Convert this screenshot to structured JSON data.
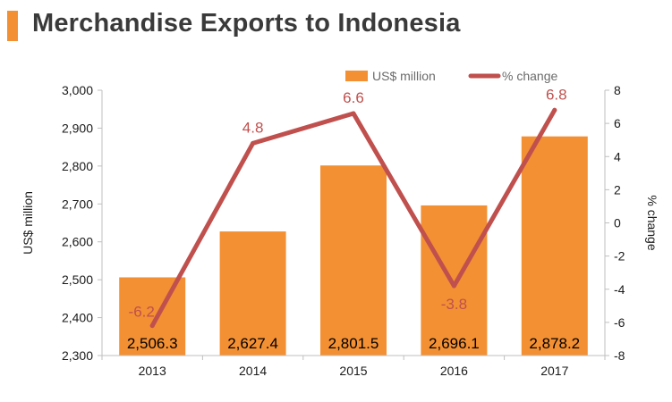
{
  "header": {
    "title": "Merchandise Exports to Indonesia"
  },
  "colors": {
    "bar": "#f39033",
    "line": "#c0504d",
    "accent": "#f39033"
  },
  "chart_data": {
    "type": "bar+line",
    "title": "Merchandise Exports to Indonesia",
    "categories": [
      "2013",
      "2014",
      "2015",
      "2016",
      "2017"
    ],
    "series": [
      {
        "name": "US$ million",
        "type": "bar",
        "axis": "left",
        "values": [
          2506.3,
          2627.4,
          2801.5,
          2696.1,
          2878.2
        ],
        "labels": [
          "2,506.3",
          "2,627.4",
          "2,801.5",
          "2,696.1",
          "2,878.2"
        ]
      },
      {
        "name": "% change",
        "type": "line",
        "axis": "right",
        "values": [
          -6.2,
          4.8,
          6.6,
          -3.8,
          6.8
        ],
        "labels": [
          "-6.2",
          "4.8",
          "6.6",
          "-3.8",
          "6.8"
        ]
      }
    ],
    "ylabel": "US$ million",
    "y2label": "% change",
    "ylim": [
      2300,
      3000
    ],
    "y2lim": [
      -8,
      8
    ],
    "yticks": [
      "2,300",
      "2,400",
      "2,500",
      "2,600",
      "2,700",
      "2,800",
      "2,900",
      "3,000"
    ],
    "y2ticks": [
      "-8",
      "-6",
      "-4",
      "-2",
      "0",
      "2",
      "4",
      "6",
      "8"
    ],
    "legend_position": "top-right",
    "grid": false
  }
}
